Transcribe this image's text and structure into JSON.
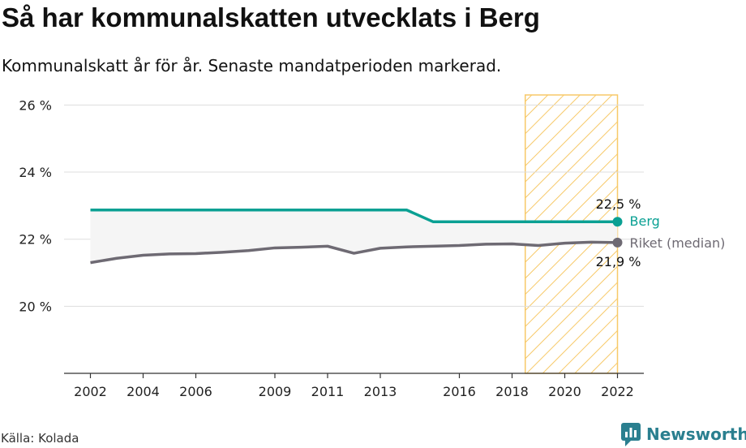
{
  "header": {
    "title": "Så har kommunalskatten utvecklats i Berg",
    "subtitle": "Kommunalskatt år för år. Senaste mandatperioden markerad."
  },
  "footer": {
    "source": "Källa: Kolada",
    "brand": "Newsworthy"
  },
  "colors": {
    "berg": "#0aa093",
    "riket": "#6e6a73",
    "highlight": "#f7c968",
    "gap_fill": "#f5f5f5",
    "grid": "#dddddd",
    "brand": "#2a7f8f"
  },
  "chart_data": {
    "type": "line",
    "x": [
      2002,
      2003,
      2004,
      2005,
      2006,
      2007,
      2008,
      2009,
      2010,
      2011,
      2012,
      2013,
      2014,
      2015,
      2016,
      2017,
      2018,
      2019,
      2020,
      2021,
      2022
    ],
    "series": [
      {
        "name": "Berg",
        "values": [
          22.87,
          22.87,
          22.87,
          22.87,
          22.87,
          22.87,
          22.87,
          22.87,
          22.87,
          22.87,
          22.87,
          22.87,
          22.87,
          22.52,
          22.52,
          22.52,
          22.52,
          22.52,
          22.52,
          22.52,
          22.52
        ]
      },
      {
        "name": "Riket (median)",
        "values": [
          21.3,
          21.43,
          21.52,
          21.56,
          21.57,
          21.61,
          21.66,
          21.74,
          21.76,
          21.79,
          21.58,
          21.73,
          21.77,
          21.79,
          21.81,
          21.85,
          21.86,
          21.81,
          21.88,
          21.91,
          21.9
        ]
      }
    ],
    "ylim": [
      18,
      26.3
    ],
    "xlim": [
      2001,
      2023
    ],
    "yticks": [
      20,
      22,
      24,
      26
    ],
    "ytick_labels": [
      "20 %",
      "22 %",
      "24 %",
      "26 %"
    ],
    "xticks": [
      2002,
      2004,
      2006,
      2009,
      2011,
      2013,
      2016,
      2018,
      2020,
      2022
    ],
    "xtick_labels": [
      "2002",
      "2004",
      "2006",
      "2009",
      "2011",
      "2013",
      "2016",
      "2018",
      "2020",
      "2022"
    ],
    "highlight_period": [
      2018.5,
      2022
    ],
    "end_labels": {
      "berg_value": "22,5 %",
      "berg_name": "Berg",
      "riket_value": "21,9 %",
      "riket_name": "Riket (median)"
    },
    "grid": true
  }
}
